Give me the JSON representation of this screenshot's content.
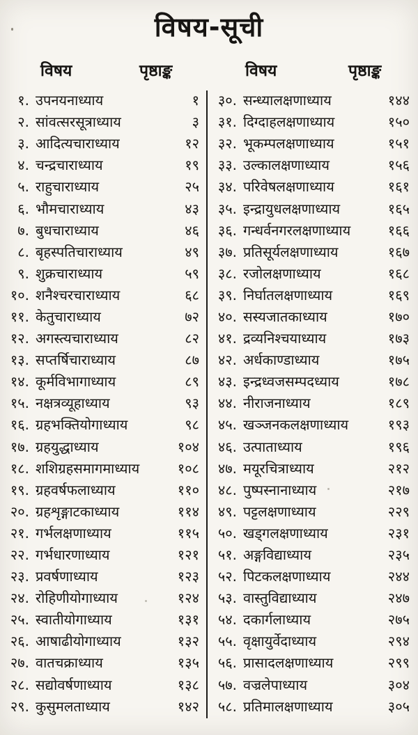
{
  "page": {
    "title": "विषय-सूची",
    "columns": [
      {
        "header_subject": "विषय",
        "header_page": "पृष्ठाङ्क",
        "entries": [
          {
            "num": "१.",
            "title": "उपनयनाध्याय",
            "page": "१"
          },
          {
            "num": "२.",
            "title": "सांवत्सरसूत्राध्याय",
            "page": "३"
          },
          {
            "num": "३.",
            "title": "आदित्यचाराध्याय",
            "page": "१२"
          },
          {
            "num": "४.",
            "title": "चन्द्रचाराध्याय",
            "page": "१९"
          },
          {
            "num": "५.",
            "title": "राहुचाराध्याय",
            "page": "२५"
          },
          {
            "num": "६.",
            "title": "भौमचाराध्याय",
            "page": "४३"
          },
          {
            "num": "७.",
            "title": "बुधचाराध्याय",
            "page": "४६"
          },
          {
            "num": "८.",
            "title": "बृहस्पतिचाराध्याय",
            "page": "४९"
          },
          {
            "num": "९.",
            "title": "शुक्रचाराध्याय",
            "page": "५९"
          },
          {
            "num": "१०.",
            "title": "शनैश्चरचाराध्याय",
            "page": "६८"
          },
          {
            "num": "११.",
            "title": "केतुचाराध्याय",
            "page": "७२"
          },
          {
            "num": "१२.",
            "title": "अगस्त्यचाराध्याय",
            "page": "८२"
          },
          {
            "num": "१३.",
            "title": "सप्तर्षिचाराध्याय",
            "page": "८७"
          },
          {
            "num": "१४.",
            "title": "कूर्मविभागाध्याय",
            "page": "८९"
          },
          {
            "num": "१५.",
            "title": "नक्षत्रव्यूहाध्याय",
            "page": "९३"
          },
          {
            "num": "१६.",
            "title": "ग्रहभक्तियोगाध्याय",
            "page": "९८"
          },
          {
            "num": "१७.",
            "title": "ग्रहयुद्धाध्याय",
            "page": "१०४"
          },
          {
            "num": "१८.",
            "title": "शशिग्रहसमागमाध्याय",
            "page": "१०८"
          },
          {
            "num": "१९.",
            "title": "ग्रहवर्षफलाध्याय",
            "page": "११०"
          },
          {
            "num": "२०.",
            "title": "ग्रहशृङ्गाटकाध्याय",
            "page": "११४"
          },
          {
            "num": "२१.",
            "title": "गर्भलक्षणाध्याय",
            "page": "११५"
          },
          {
            "num": "२२.",
            "title": "गर्भधारणाध्याय",
            "page": "१२१"
          },
          {
            "num": "२३.",
            "title": "प्रवर्षणाध्याय",
            "page": "१२३"
          },
          {
            "num": "२४.",
            "title": "रोहिणीयोगाध्याय",
            "page": "१२४"
          },
          {
            "num": "२५.",
            "title": "स्वातीयोगाध्याय",
            "page": "१३१"
          },
          {
            "num": "२६.",
            "title": "आषाढीयोगाध्याय",
            "page": "१३२"
          },
          {
            "num": "२७.",
            "title": "वातचक्राध्याय",
            "page": "१३५"
          },
          {
            "num": "२८.",
            "title": "सद्योवर्षणाध्याय",
            "page": "१३८"
          },
          {
            "num": "२९.",
            "title": "कुसुमलताध्याय",
            "page": "१४२"
          }
        ]
      },
      {
        "header_subject": "विषय",
        "header_page": "पृष्ठाङ्क",
        "entries": [
          {
            "num": "३०.",
            "title": "सन्ध्यालक्षणाध्याय",
            "page": "१४४"
          },
          {
            "num": "३१.",
            "title": "दिग्दाहलक्षणाध्याय",
            "page": "१५०"
          },
          {
            "num": "३२.",
            "title": "भूकम्पलक्षणाध्याय",
            "page": "१५१"
          },
          {
            "num": "३३.",
            "title": "उल्कालक्षणाध्याय",
            "page": "१५६"
          },
          {
            "num": "३४.",
            "title": "परिवेषलक्षणाध्याय",
            "page": "१६१"
          },
          {
            "num": "३५.",
            "title": "इन्द्रायुधलक्षणाध्याय",
            "page": "१६५"
          },
          {
            "num": "३६.",
            "title": "गन्धर्वनगरलक्षणाध्याय",
            "page": "१६६"
          },
          {
            "num": "३७.",
            "title": "प्रतिसूर्यलक्षणाध्याय",
            "page": "१६७"
          },
          {
            "num": "३८.",
            "title": "रजोलक्षणाध्याय",
            "page": "१६८"
          },
          {
            "num": "३९.",
            "title": "निर्घातलक्षणाध्याय",
            "page": "१६९"
          },
          {
            "num": "४०.",
            "title": "सस्यजातकाध्याय",
            "page": "१७०"
          },
          {
            "num": "४१.",
            "title": "द्रव्यनिश्चयाध्याय",
            "page": "१७३"
          },
          {
            "num": "४२.",
            "title": "अर्धकाण्डाध्याय",
            "page": "१७५"
          },
          {
            "num": "४३.",
            "title": "इन्द्रध्वजसम्पदध्याय",
            "page": "१७८"
          },
          {
            "num": "४४.",
            "title": "नीराजनाध्याय",
            "page": "१८९"
          },
          {
            "num": "४५.",
            "title": "खञ्जनकलक्षणाध्याय",
            "page": "१९३"
          },
          {
            "num": "४६.",
            "title": "उत्पाताध्याय",
            "page": "१९६"
          },
          {
            "num": "४७.",
            "title": "मयूरचित्राध्याय",
            "page": "२१२"
          },
          {
            "num": "४८.",
            "title": "पुष्पस्नानाध्याय",
            "page": "२१७"
          },
          {
            "num": "४९.",
            "title": "पट्टलक्षणाध्याय",
            "page": "२२९"
          },
          {
            "num": "५०.",
            "title": "खड्गलक्षणाध्याय",
            "page": "२३१"
          },
          {
            "num": "५१.",
            "title": "अङ्गविद्याध्याय",
            "page": "२३५"
          },
          {
            "num": "५२.",
            "title": "पिटकलक्षणाध्याय",
            "page": "२४४"
          },
          {
            "num": "५३.",
            "title": "वास्तुविद्याध्याय",
            "page": "२४७"
          },
          {
            "num": "५४.",
            "title": "दकार्गलाध्याय",
            "page": "२७५"
          },
          {
            "num": "५५.",
            "title": "वृक्षायुर्वेदाध्याय",
            "page": "२९४"
          },
          {
            "num": "५६.",
            "title": "प्रासादलक्षणाध्याय",
            "page": "२९९"
          },
          {
            "num": "५७.",
            "title": "वज्रलेपाध्याय",
            "page": "३०४"
          },
          {
            "num": "५८.",
            "title": "प्रतिमालक्षणाध्याय",
            "page": "३०५"
          }
        ]
      }
    ]
  }
}
